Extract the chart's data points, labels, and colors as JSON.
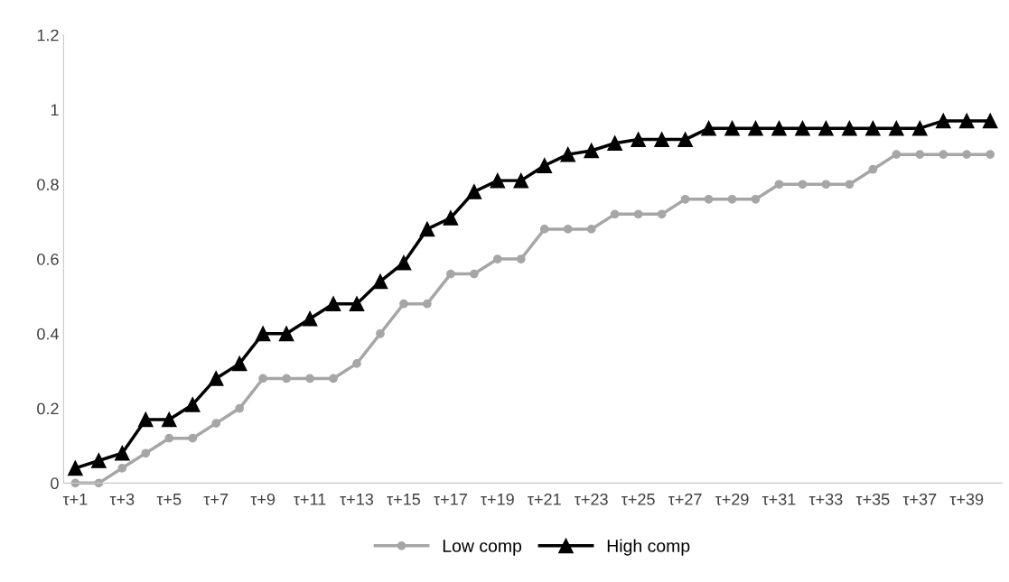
{
  "chart_data": {
    "type": "line",
    "categories": [
      "τ+1",
      null,
      "τ+3",
      null,
      "τ+5",
      null,
      "τ+7",
      null,
      "τ+9",
      null,
      "τ+11",
      null,
      "τ+13",
      null,
      "τ+15",
      null,
      "τ+17",
      null,
      "τ+19",
      null,
      "τ+21",
      null,
      "τ+23",
      null,
      "τ+25",
      null,
      "τ+27",
      null,
      "τ+29",
      null,
      "τ+31",
      null,
      "τ+33",
      null,
      "τ+35",
      null,
      "τ+37",
      null,
      "τ+39",
      null
    ],
    "series": [
      {
        "name": "Low comp",
        "color": "#a6a6a6",
        "marker": "circle",
        "values": [
          0,
          0,
          0.04,
          0.08,
          0.12,
          0.12,
          0.16,
          0.2,
          0.28,
          0.28,
          0.28,
          0.28,
          0.32,
          0.4,
          0.48,
          0.48,
          0.56,
          0.56,
          0.6,
          0.6,
          0.68,
          0.68,
          0.68,
          0.72,
          0.72,
          0.72,
          0.76,
          0.76,
          0.76,
          0.76,
          0.8,
          0.8,
          0.8,
          0.8,
          0.84,
          0.88,
          0.88,
          0.88,
          0.88,
          0.88
        ]
      },
      {
        "name": "High comp",
        "color": "#000000",
        "marker": "triangle",
        "values": [
          0.04,
          0.06,
          0.08,
          0.17,
          0.17,
          0.21,
          0.28,
          0.32,
          0.4,
          0.4,
          0.44,
          0.48,
          0.48,
          0.54,
          0.59,
          0.68,
          0.71,
          0.78,
          0.81,
          0.81,
          0.85,
          0.88,
          0.89,
          0.91,
          0.92,
          0.92,
          0.92,
          0.95,
          0.95,
          0.95,
          0.95,
          0.95,
          0.95,
          0.95,
          0.95,
          0.95,
          0.95,
          0.97,
          0.97,
          0.97
        ]
      }
    ],
    "ylim": [
      0,
      1.2
    ],
    "yticks": [
      0,
      0.2,
      0.4,
      0.6,
      0.8,
      1,
      1.2
    ],
    "grid": false,
    "legend": "bottom",
    "line_style": "solid"
  }
}
